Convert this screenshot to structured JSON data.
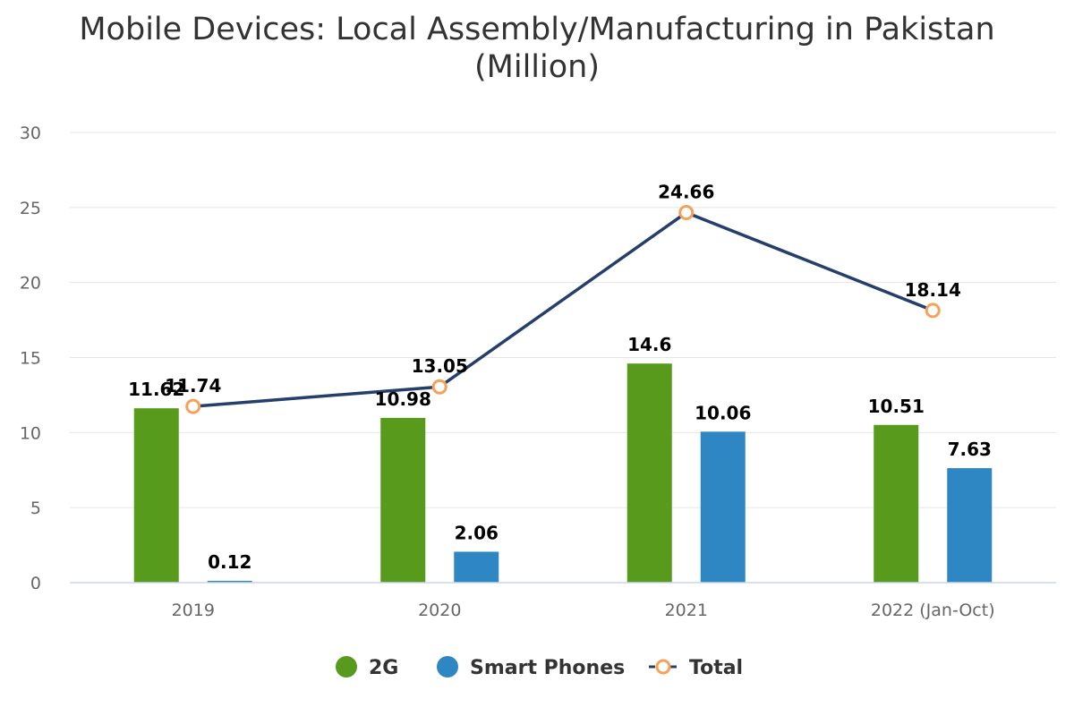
{
  "chart_data": {
    "type": "bar",
    "title": "Mobile Devices: Local Assembly/Manufacturing in Pakistan",
    "subtitle": "(Million)",
    "categories": [
      "2019",
      "2020",
      "2021",
      "2022 (Jan-Oct)"
    ],
    "series": [
      {
        "name": "2G",
        "type": "bar",
        "color": "#579A1C",
        "values": [
          11.62,
          10.98,
          14.6,
          10.51
        ]
      },
      {
        "name": "Smart Phones",
        "type": "bar",
        "color": "#2E87C2",
        "values": [
          0.12,
          2.06,
          10.06,
          7.63
        ]
      },
      {
        "name": "Total",
        "type": "line",
        "color": "#253F6A",
        "marker_color": "#F5A15A",
        "values": [
          11.74,
          13.05,
          24.66,
          18.14
        ]
      }
    ],
    "data_labels": [
      [
        "11.62",
        "10.98",
        "14.6",
        "10.51"
      ],
      [
        "0.12",
        "2.06",
        "10.06",
        "7.63"
      ],
      [
        "11.74",
        "13.05",
        "24.66",
        "18.14"
      ]
    ],
    "yticks": [
      0,
      5,
      10,
      15,
      20,
      25,
      30
    ],
    "ylim": [
      0,
      30
    ],
    "xlabel": "",
    "ylabel": "",
    "grid": true,
    "legend_position": "bottom-center"
  }
}
